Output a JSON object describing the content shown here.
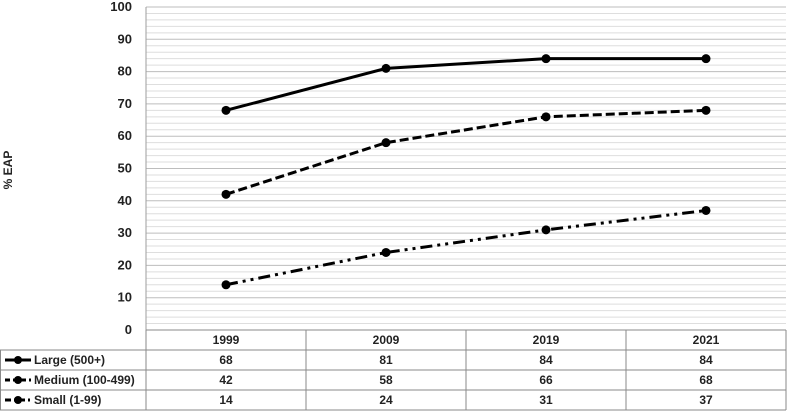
{
  "chart_data": {
    "type": "line",
    "title": "",
    "xlabel": "",
    "ylabel": "% EAP",
    "ylim": [
      0,
      100
    ],
    "yticks": [
      0,
      10,
      20,
      30,
      40,
      50,
      60,
      70,
      80,
      90,
      100
    ],
    "grid": true,
    "legend": "data-table-left",
    "categories": [
      "1999",
      "2009",
      "2019",
      "2021"
    ],
    "series": [
      {
        "name": "Large (500+)",
        "values": [
          68,
          81,
          84,
          84
        ],
        "style": "solid",
        "color": "#000000"
      },
      {
        "name": "Medium (100-499)",
        "values": [
          42,
          58,
          66,
          68
        ],
        "style": "dashed",
        "color": "#000000"
      },
      {
        "name": "Small (1-99)",
        "values": [
          14,
          24,
          31,
          37
        ],
        "style": "dash-dot-dot",
        "color": "#000000"
      }
    ]
  }
}
